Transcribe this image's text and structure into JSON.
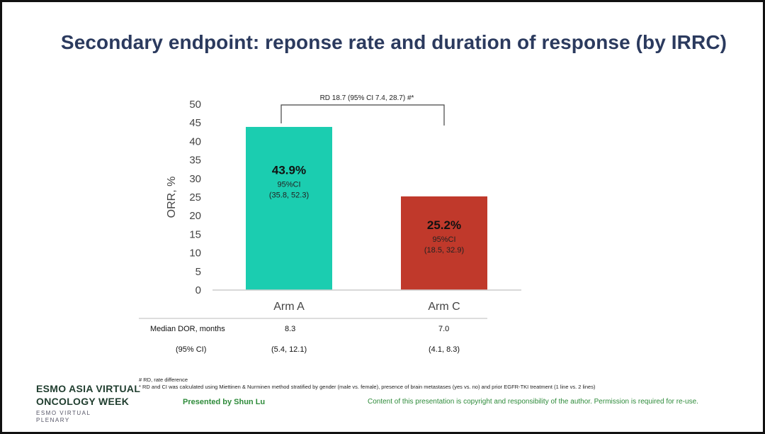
{
  "slide_title": "Secondary endpoint: reponse rate and duration of response (by IRRC)",
  "colors": {
    "arm_a": "#1bcdb0",
    "arm_c": "#c0392b",
    "title": "#2b3a5e",
    "footer_green": "#2e8b3a"
  },
  "chart_data": {
    "type": "bar",
    "categories": [
      "Arm A",
      "Arm C"
    ],
    "values": [
      43.9,
      25.2
    ],
    "value_labels": [
      "43.9%",
      "25.2%"
    ],
    "ci_titles": [
      "95%CI",
      "95%CI"
    ],
    "ci_values": [
      "(35.8, 52.3)",
      "(18.5, 32.9)"
    ],
    "ylabel": "ORR, %",
    "ylim": [
      0,
      50
    ],
    "yticks": [
      0,
      5,
      10,
      15,
      20,
      25,
      30,
      35,
      40,
      45,
      50
    ],
    "grid": false,
    "bracket_annotation": "RD 18.7 (95% CI 7.4, 28.7) #*"
  },
  "table": {
    "row1_label": "Median DOR, months",
    "row2_label": "(95% CI)",
    "arm_a": {
      "median": "8.3",
      "ci": "(5.4, 12.1)"
    },
    "arm_c": {
      "median": "7.0",
      "ci": "(4.1, 8.3)"
    }
  },
  "footnotes": {
    "line1": "# RD, rate difference",
    "line2": "* RD and CI was calculated using Miettinen & Nurminen method stratified by gender (male vs. female), presence of brain metastases (yes vs. no) and prior EGFR-TKI treatment (1 line vs. 2 lines)"
  },
  "footer": {
    "logo_line1": "ESMO ASIA VIRTUAL",
    "logo_line2": "ONCOLOGY WEEK",
    "logo_line3": "ESMO VIRTUAL PLENARY",
    "presenter": "Presented by Shun Lu",
    "copyright": "Content of this presentation is copyright and responsibility of the author. Permission is required for re-use."
  }
}
